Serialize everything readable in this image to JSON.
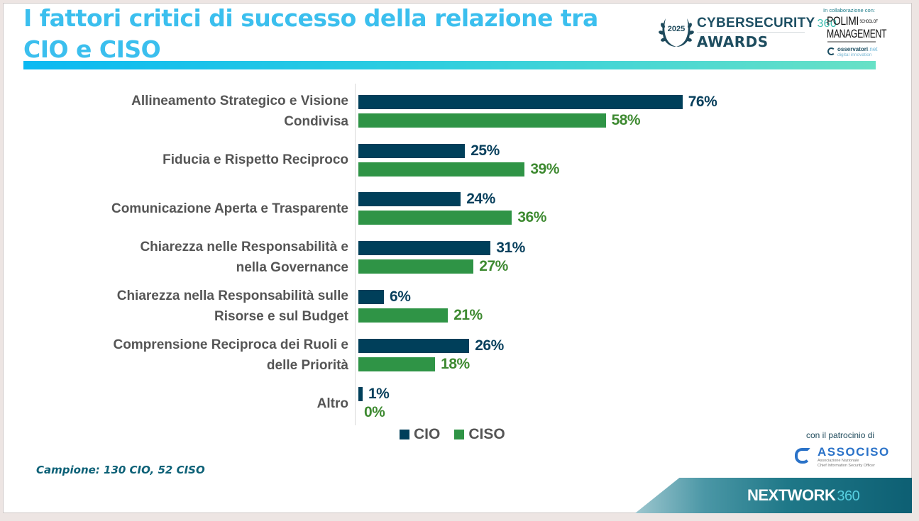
{
  "header": {
    "title": "I fattori critici di successo della relazione tra CIO e CISO",
    "awards_logo": {
      "year": "2025",
      "line1": "CYBERSECURITY",
      "line1_suffix": "360",
      "line2": "AWARDS"
    },
    "collaboration_label": "In collaborazione con:",
    "polimi_logo": {
      "line1": "POLIMI",
      "school": "SCHOOL OF",
      "line2": "MANAGEMENT"
    },
    "osservatori_logo": {
      "name": "osservatori",
      "tld": ".net",
      "tagline": "digital innovation"
    }
  },
  "chart_data": {
    "type": "bar",
    "orientation": "horizontal",
    "title": "I fattori critici di successo della relazione tra CIO e CISO",
    "xlabel": "",
    "ylabel": "",
    "xlim": [
      0,
      100
    ],
    "grid": false,
    "legend_position": "bottom",
    "categories": [
      [
        "Allineamento Strategico e Visione",
        "Condivisa"
      ],
      [
        "Fiducia e Rispetto Reciproco"
      ],
      [
        "Comunicazione Aperta e Trasparente"
      ],
      [
        "Chiarezza nelle Responsabilità e",
        "nella Governance"
      ],
      [
        "Chiarezza nella Responsabilità sulle",
        "Risorse e sul Budget"
      ],
      [
        "Comprensione Reciproca dei Ruoli e",
        "delle Priorità"
      ],
      [
        "Altro"
      ]
    ],
    "series": [
      {
        "name": "CIO",
        "color": "#003f5a",
        "label_color": "#073f5c",
        "values": [
          76,
          25,
          24,
          31,
          6,
          26,
          1
        ]
      },
      {
        "name": "CISO",
        "color": "#2f9446",
        "label_color": "#3e8a31",
        "values": [
          58,
          39,
          36,
          27,
          21,
          18,
          0
        ]
      }
    ],
    "value_suffix": "%"
  },
  "footer": {
    "sample_note": "Campione: 130 CIO, 52 CISO",
    "patronage_label": "con il patrocinio di",
    "associso": {
      "name": "ASSOCISO",
      "sub1": "Associazione Nazionale",
      "sub2": "Chief Information Security Officer"
    },
    "network_logo": {
      "name": "NEXTWORK",
      "suffix": "360"
    }
  }
}
